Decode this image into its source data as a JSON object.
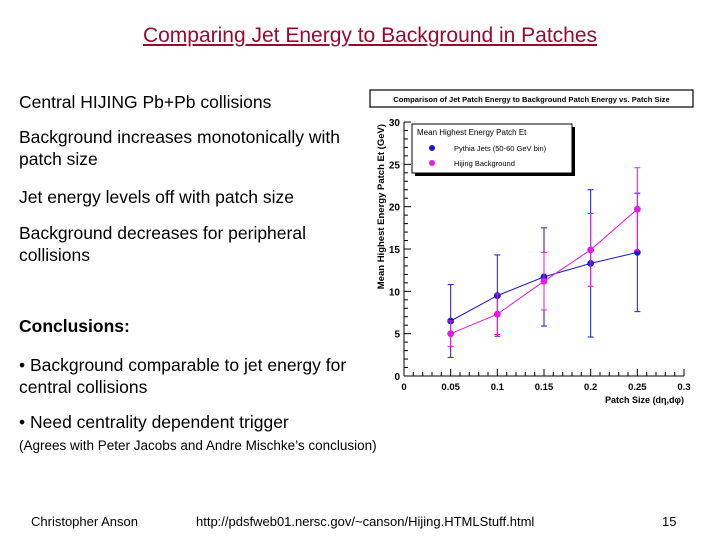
{
  "slide": {
    "title": "Comparing Jet Energy to Background in Patches",
    "bullets": [
      "Central HIJING Pb+Pb collisions",
      "Background increases monotonically with patch size",
      "Jet energy levels off with patch size",
      "Background decreases for peripheral collisions"
    ],
    "conclusions_heading": "Conclusions:",
    "conclusion_items": [
      "• Background comparable to jet energy for central collisions",
      "• Need centrality dependent trigger"
    ],
    "note": "(Agrees with Peter Jacobs and Andre Mischke’s conclusion)",
    "footer": {
      "author": "Christopher Anson",
      "url": "http://pdsfweb01.nersc.gov/~canson/Hijing.HTMLStuff.html",
      "page": "15"
    }
  },
  "chart_data": {
    "type": "line",
    "title": "Comparison of Jet Patch Energy to Background Patch Energy vs. Patch Size",
    "xlabel": "Patch Size (dη,dφ)",
    "ylabel": "Mean Highest Energy Patch Et (GeV)",
    "xlim": [
      0,
      0.3
    ],
    "ylim": [
      0,
      30
    ],
    "xticks": [
      "0",
      "0.05",
      "0.1",
      "0.15",
      "0.2",
      "0.25",
      "0.3"
    ],
    "yticks": [
      "0",
      "5",
      "10",
      "15",
      "20",
      "25",
      "30"
    ],
    "grid": false,
    "legend_title": "Mean Highest Energy Patch Et",
    "legend_position": "top-left",
    "series": [
      {
        "name": "Pythia Jets (50-60 GeV bin)",
        "color": "#1a1acc",
        "marker": "circle",
        "x": [
          0.05,
          0.1,
          0.15,
          0.2,
          0.25
        ],
        "y": [
          6.5,
          9.5,
          11.7,
          13.3,
          14.6
        ],
        "err": [
          4.3,
          4.8,
          5.8,
          8.7,
          7.0
        ]
      },
      {
        "name": "Hijing Background",
        "color": "#e619e6",
        "marker": "circle",
        "x": [
          0.05,
          0.1,
          0.15,
          0.2,
          0.25
        ],
        "y": [
          5.0,
          7.3,
          11.2,
          14.9,
          19.7
        ],
        "err": [
          1.5,
          2.4,
          3.4,
          4.3,
          4.9
        ]
      }
    ]
  }
}
